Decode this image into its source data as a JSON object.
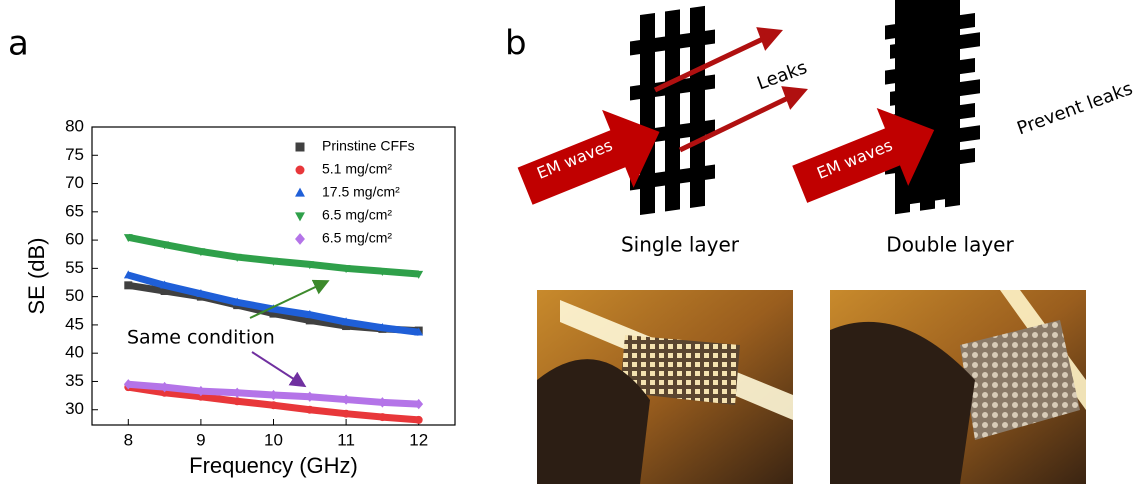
{
  "chart_data": {
    "type": "line",
    "panel_label": "a",
    "x_label": "Frequency (GHz)",
    "y_label": "SE (dB)",
    "x": [
      8,
      8.5,
      9,
      9.5,
      10,
      10.5,
      11,
      11.5,
      12
    ],
    "series": [
      {
        "name": "Prinstine CFFs",
        "color": "#404040",
        "marker": "square",
        "values": [
          52,
          51,
          50,
          48.5,
          47,
          45.8,
          44.8,
          44.3,
          44
        ]
      },
      {
        "name": "5.1 mg/cm²",
        "color": "#e8373a",
        "marker": "circle",
        "values": [
          34,
          33,
          32.3,
          31.5,
          30.8,
          30,
          29.3,
          28.7,
          28.2
        ]
      },
      {
        "name": "17.5 mg/cm²",
        "color": "#1f5fd8",
        "marker": "triangle-up",
        "values": [
          53.8,
          52,
          50.5,
          49,
          47.8,
          46.8,
          45.5,
          44.5,
          43.7
        ]
      },
      {
        "name": "6.5 mg/cm²",
        "color": "#2fa04a",
        "marker": "triangle-down",
        "values": [
          60.5,
          59.2,
          58,
          57,
          56.3,
          55.7,
          55,
          54.5,
          54
        ]
      },
      {
        "name": "6.5 mg/cm²",
        "color": "#b474e8",
        "marker": "diamond",
        "values": [
          34.5,
          34,
          33.3,
          33,
          32.6,
          32.3,
          31.8,
          31.3,
          31
        ]
      }
    ],
    "annotation": "Same condition",
    "xlim": [
      7.5,
      12.5
    ],
    "xticks": [
      8,
      9,
      10,
      11,
      12
    ],
    "ylim": [
      27.3,
      80
    ],
    "yticks": [
      30,
      35,
      40,
      45,
      50,
      55,
      60,
      65,
      70,
      75,
      80
    ],
    "legend": "top-right"
  },
  "diagram": {
    "panel_label": "b",
    "em_waves_1": "EM waves",
    "em_waves_2": "EM waves",
    "leaks": "Leaks",
    "prevent_leaks": "Prevent leaks",
    "single_layer": "Single layer",
    "double_layer": "Double layer"
  }
}
